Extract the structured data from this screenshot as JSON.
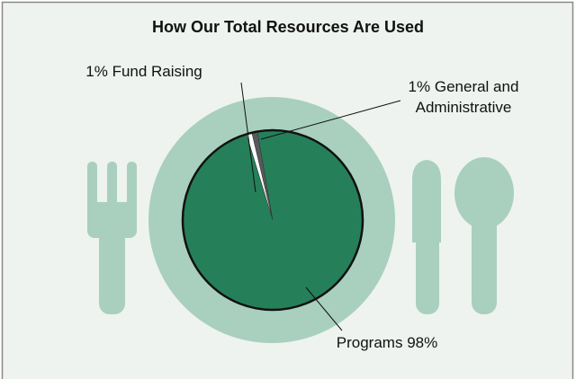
{
  "chart_data": {
    "type": "pie",
    "title": "How Our Total Resources Are Used",
    "categories": [
      "Fund Raising",
      "General and Administrative",
      "Programs"
    ],
    "values": [
      1,
      1,
      98
    ],
    "value_labels": [
      "1%",
      "1%",
      "98%"
    ],
    "colors": [
      "#ffffff",
      "#58595b",
      "#25805a"
    ]
  }
}
